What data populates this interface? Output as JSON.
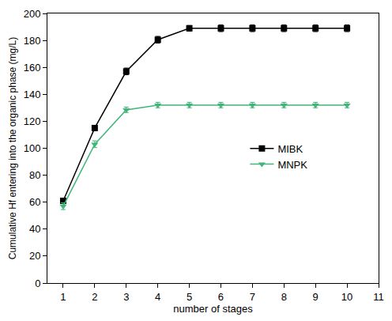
{
  "chart_data": {
    "type": "line",
    "x_label": "number of stages",
    "y_label": "Cumulative Hf entering into the organic phase (mg/L)",
    "x": [
      1,
      2,
      3,
      4,
      5,
      6,
      7,
      8,
      9,
      10
    ],
    "series": [
      {
        "name": "MIBK",
        "color": "#000000",
        "marker": "square",
        "line_style": "solid",
        "values": [
          61,
          115,
          157,
          180.5,
          189,
          189,
          189,
          189,
          189,
          189
        ],
        "errors": [
          2,
          2,
          2.5,
          2.5,
          2,
          2.5,
          2.5,
          2.5,
          2.5,
          2.5
        ]
      },
      {
        "name": "MNPK",
        "color": "#3fb67a",
        "marker": "triangle-down",
        "line_style": "solid",
        "values": [
          57,
          103,
          128.5,
          132,
          132,
          132,
          132,
          132,
          132,
          132
        ],
        "errors": [
          2.5,
          2.5,
          2,
          2,
          2,
          2,
          2,
          2,
          2,
          2
        ]
      }
    ],
    "xlim": [
      0.5,
      11
    ],
    "xticks": [
      1,
      2,
      3,
      4,
      5,
      6,
      7,
      8,
      9,
      10,
      11
    ],
    "ylim": [
      0,
      200
    ],
    "yticks": [
      0,
      20,
      40,
      60,
      80,
      100,
      120,
      140,
      160,
      180,
      200
    ],
    "grid": false,
    "legend": "center right"
  }
}
